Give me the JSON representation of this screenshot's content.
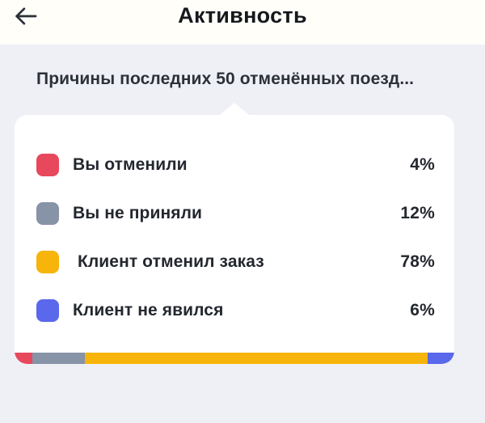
{
  "header": {
    "title": "Активность",
    "back_icon": "arrow-left-icon"
  },
  "page": {
    "subtitle": "Причины последних 50 отменённых поезд...",
    "background_color": "#EFF0F5",
    "header_background_color": "#FFFEF9",
    "card_background_color": "#FFFFFF",
    "text_color": "#23272E"
  },
  "chart_data": {
    "type": "bar",
    "subtype": "horizontal-stacked-with-legend",
    "title": "Причины последних 50 отменённых поезд...",
    "categories": [
      "Вы отменили",
      "Вы не приняли",
      "Клиент отменил заказ",
      "Клиент не явился"
    ],
    "values": [
      4,
      12,
      78,
      6
    ],
    "unit": "%",
    "colors": [
      "#E8485C",
      "#8793A6",
      "#F7B40A",
      "#5A68EB"
    ],
    "legend_position": "list-above-bar",
    "rows": [
      {
        "label": "Вы отменили",
        "value_label": "4%",
        "value": 4,
        "color": "#E8485C"
      },
      {
        "label": "Вы не приняли",
        "value_label": "12%",
        "value": 12,
        "color": "#8793A6"
      },
      {
        "label": " Клиент отменил заказ",
        "value_label": "78%",
        "value": 78,
        "color": "#F7B40A"
      },
      {
        "label": "Клиент не явился",
        "value_label": "6%",
        "value": 6,
        "color": "#5A68EB"
      }
    ]
  }
}
